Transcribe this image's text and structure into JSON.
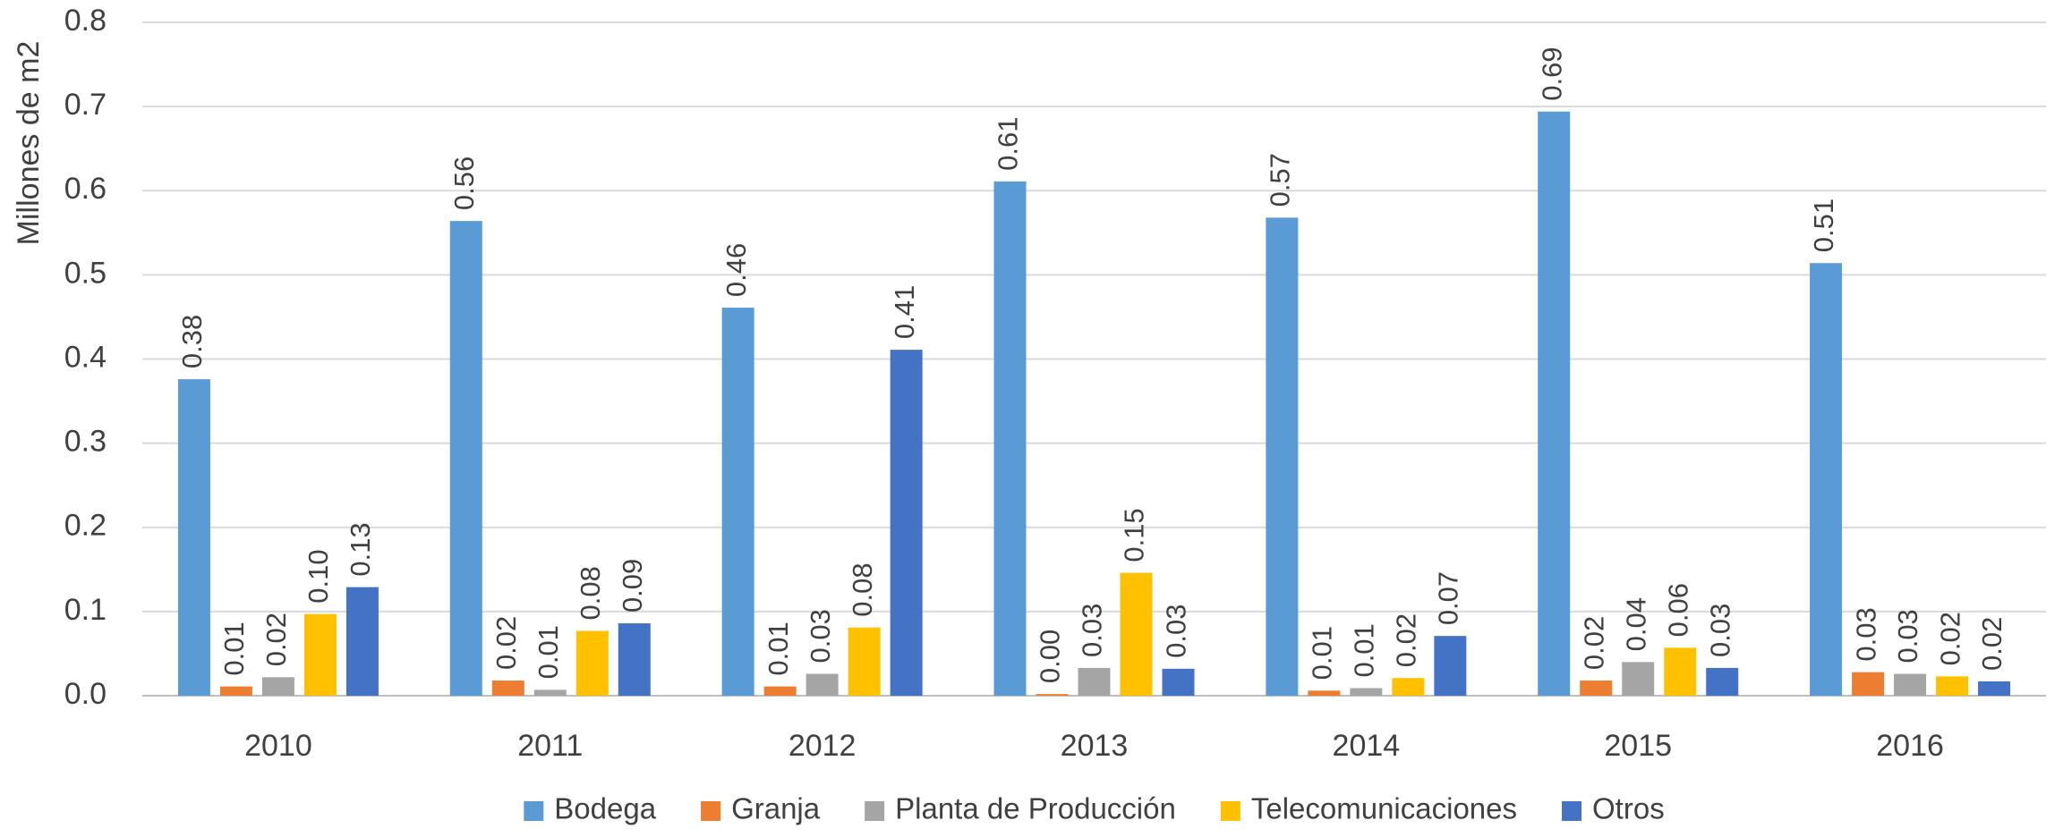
{
  "chart_data": {
    "type": "bar",
    "ylabel": "Millones de m2",
    "categories": [
      "2010",
      "2011",
      "2012",
      "2013",
      "2014",
      "2015",
      "2016"
    ],
    "series": [
      {
        "name": "Bodega",
        "color": "#5b9bd5",
        "values": [
          0.376,
          0.564,
          0.461,
          0.611,
          0.568,
          0.694,
          0.514
        ],
        "value_labels": [
          "0.38",
          "0.56",
          "0.46",
          "0.61",
          "0.57",
          "0.69",
          "0.51"
        ]
      },
      {
        "name": "Granja",
        "color": "#ed7d31",
        "values": [
          0.011,
          0.018,
          0.011,
          0.002,
          0.006,
          0.018,
          0.028
        ],
        "value_labels": [
          "0.01",
          "0.02",
          "0.01",
          "0.00",
          "0.01",
          "0.02",
          "0.03"
        ]
      },
      {
        "name": "Planta de Producción",
        "color": "#a5a5a5",
        "values": [
          0.022,
          0.007,
          0.026,
          0.033,
          0.009,
          0.04,
          0.026
        ],
        "value_labels": [
          "0.02",
          "0.01",
          "0.03",
          "0.03",
          "0.01",
          "0.04",
          "0.03"
        ]
      },
      {
        "name": "Telecomunicaciones",
        "color": "#ffc000",
        "values": [
          0.097,
          0.077,
          0.081,
          0.146,
          0.021,
          0.057,
          0.023
        ],
        "value_labels": [
          "0.10",
          "0.08",
          "0.08",
          "0.15",
          "0.02",
          "0.06",
          "0.02"
        ]
      },
      {
        "name": "Otros",
        "color": "#4472c4",
        "values": [
          0.129,
          0.086,
          0.411,
          0.032,
          0.071,
          0.033,
          0.017
        ],
        "value_labels": [
          "0.13",
          "0.09",
          "0.41",
          "0.03",
          "0.07",
          "0.03",
          "0.02"
        ]
      }
    ],
    "ylim": [
      0,
      0.8
    ],
    "yticks": [
      {
        "value": 0,
        "label": "0.0"
      },
      {
        "value": 0.1,
        "label": "0.1"
      },
      {
        "value": 0.2,
        "label": "0.2"
      },
      {
        "value": 0.3,
        "label": "0.3"
      },
      {
        "value": 0.4,
        "label": "0.4"
      },
      {
        "value": 0.5,
        "label": "0.5"
      },
      {
        "value": 0.6,
        "label": "0.6"
      },
      {
        "value": 0.7,
        "label": "0.7"
      },
      {
        "value": 0.8,
        "label": "0.8"
      }
    ],
    "grid": true,
    "legend": "bottom"
  }
}
